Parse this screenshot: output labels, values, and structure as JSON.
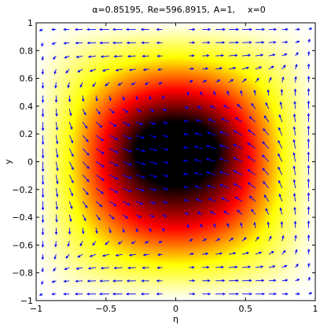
{
  "chart_data": {
    "type": "heatmap",
    "title_parts": [
      "α=0.85195,",
      "Re=596.8915,",
      "A=1,",
      "x=0"
    ],
    "xlabel": "η",
    "ylabel": "y",
    "xlim": [
      -1,
      1
    ],
    "ylim": [
      -1,
      1
    ],
    "xticks": [
      -1,
      -0.5,
      0,
      0.5,
      1
    ],
    "xtick_labels": [
      "−1",
      "−0.5",
      "0",
      "0.5",
      "1"
    ],
    "yticks": [
      -1,
      -0.8,
      -0.6,
      -0.4,
      -0.2,
      0,
      0.2,
      0.4,
      0.6,
      0.8,
      1
    ],
    "ytick_labels": [
      "−1",
      "−0.8",
      "−0.6",
      "−0.4",
      "−0.2",
      "0",
      "0.2",
      "0.4",
      "0.6",
      "0.8",
      "1"
    ],
    "grid": false,
    "colormap": "hot (reversed)",
    "colors": {
      "background": "#ffffff",
      "axes": "#000000",
      "vector_arrows": "#0000ff",
      "colormap_stops": [
        "#000000",
        "#ff0000",
        "#ffff00",
        "#ffffff"
      ]
    },
    "field_overlay": "quiver",
    "vector_grid_count": 21
  }
}
